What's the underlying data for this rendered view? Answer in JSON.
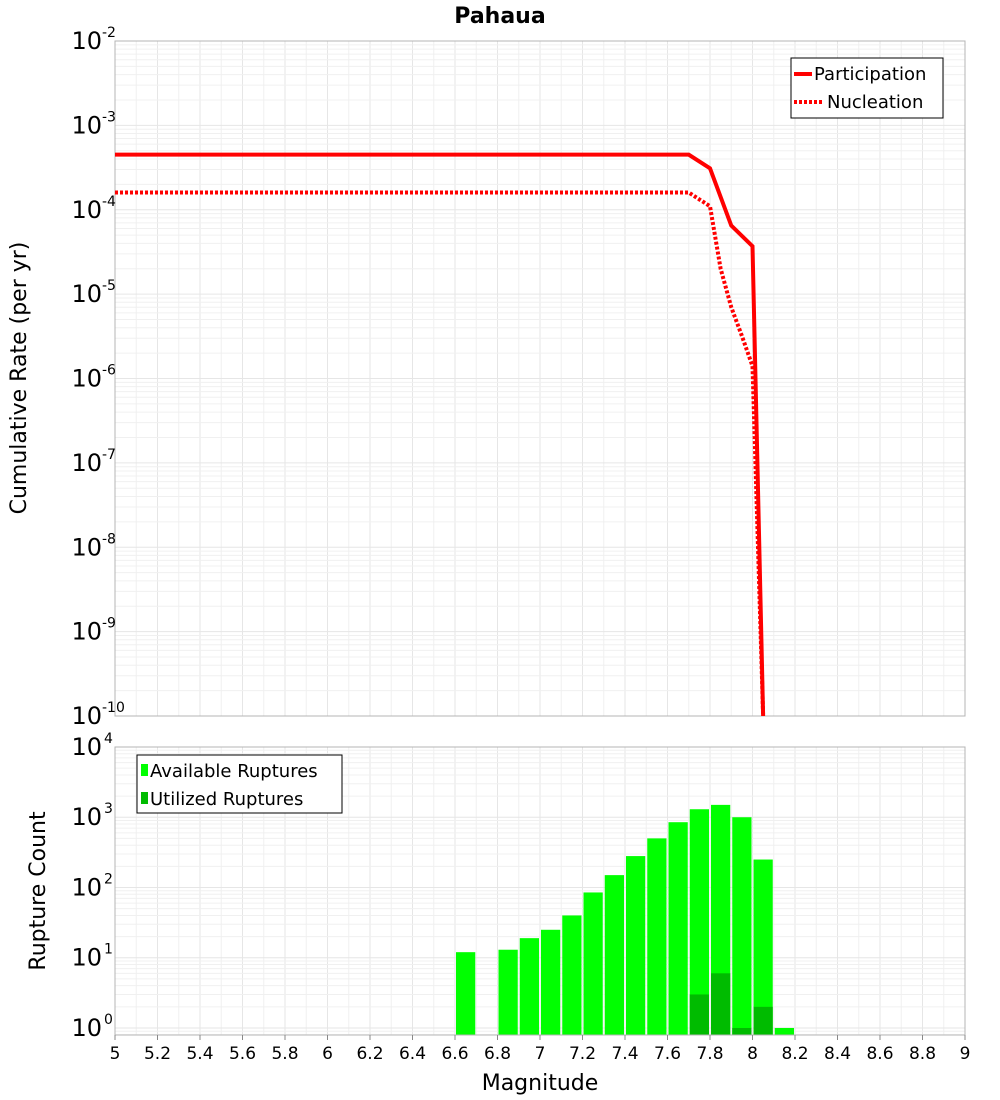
{
  "chart_data": [
    {
      "type": "line",
      "title": "Pahaua",
      "xlabel": "",
      "ylabel": "Cumulative Rate (per yr)",
      "xlim": [
        5,
        9
      ],
      "ylim_exp": [
        -10,
        -2
      ],
      "y_scale": "log",
      "y_ticks": [
        {
          "base": "10",
          "exp": "-2",
          "value": -2
        },
        {
          "base": "10",
          "exp": "-3",
          "value": -3
        },
        {
          "base": "10",
          "exp": "-4",
          "value": -4
        },
        {
          "base": "10",
          "exp": "-5",
          "value": -5
        },
        {
          "base": "10",
          "exp": "-6",
          "value": -6
        },
        {
          "base": "10",
          "exp": "-7",
          "value": -7
        },
        {
          "base": "10",
          "exp": "-8",
          "value": -8
        },
        {
          "base": "10",
          "exp": "-9",
          "value": -9
        },
        {
          "base": "10",
          "exp": "-10",
          "value": -10
        }
      ],
      "legend": {
        "position": "top-right",
        "entries": [
          "Participation",
          "Nucleation"
        ]
      },
      "series": [
        {
          "name": "Participation",
          "style": "solid",
          "color": "#ff0000",
          "x": [
            5.0,
            7.7,
            7.8,
            7.9,
            8.0,
            8.05
          ],
          "y": [
            0.00045,
            0.00045,
            0.00031,
            6.5e-05,
            3.7e-05,
            1e-10
          ]
        },
        {
          "name": "Nucleation",
          "style": "dotted",
          "color": "#ff0000",
          "x": [
            5.0,
            7.7,
            7.8,
            7.85,
            7.9,
            7.95,
            8.0,
            8.05
          ],
          "y": [
            0.00016,
            0.00016,
            0.00011,
            2e-05,
            7e-06,
            3.2e-06,
            1.4e-06,
            1e-10
          ]
        }
      ]
    },
    {
      "type": "bar",
      "xlabel": "Magnitude",
      "ylabel": "Rupture Count",
      "xlim": [
        5,
        9
      ],
      "ylim_exp": [
        -0.1,
        4
      ],
      "y_scale": "log",
      "x_ticks": [
        "5",
        "5.2",
        "5.4",
        "5.6",
        "5.8",
        "6",
        "6.2",
        "6.4",
        "6.6",
        "6.8",
        "7",
        "7.2",
        "7.4",
        "7.6",
        "7.8",
        "8",
        "8.2",
        "8.4",
        "8.6",
        "8.8",
        "9"
      ],
      "y_ticks": [
        {
          "base": "10",
          "exp": "4",
          "value": 4
        },
        {
          "base": "10",
          "exp": "3",
          "value": 3
        },
        {
          "base": "10",
          "exp": "2",
          "value": 2
        },
        {
          "base": "10",
          "exp": "1",
          "value": 1
        },
        {
          "base": "10",
          "exp": "0",
          "value": 0
        }
      ],
      "legend": {
        "position": "top-left",
        "entries": [
          "Available Ruptures",
          "Utilized Ruptures"
        ]
      },
      "bar_width": 0.1,
      "series": [
        {
          "name": "Available Ruptures",
          "color": "#00ff00",
          "x": [
            6.65,
            6.85,
            6.95,
            7.05,
            7.15,
            7.25,
            7.35,
            7.45,
            7.55,
            7.65,
            7.75,
            7.85,
            7.95,
            8.05,
            8.15
          ],
          "values": [
            12,
            13,
            19,
            25,
            40,
            85,
            150,
            280,
            500,
            850,
            1300,
            1500,
            1000,
            250,
            1
          ]
        },
        {
          "name": "Utilized Ruptures",
          "color": "#00bb00",
          "x": [
            7.75,
            7.85,
            7.95,
            8.05
          ],
          "values": [
            3,
            6,
            1,
            2
          ]
        }
      ]
    }
  ]
}
